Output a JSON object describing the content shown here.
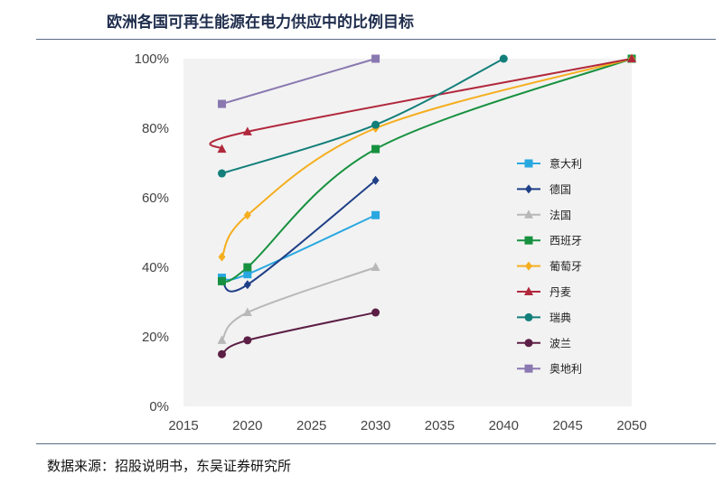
{
  "header": {
    "title": "欧洲各国可再生能源在电力供应中的比例目标"
  },
  "footer": {
    "source": "数据来源：招股说明书，东吴证券研究所"
  },
  "chart_data": {
    "type": "line",
    "title": "欧洲各国可再生能源在电力供应中的比例目标",
    "xlabel": "",
    "ylabel": "",
    "xlim": [
      2015,
      2050
    ],
    "ylim": [
      0,
      100
    ],
    "x_ticks": [
      "2015",
      "2020",
      "2025",
      "2030",
      "2035",
      "2040",
      "2045",
      "2050"
    ],
    "y_ticks": [
      "0%",
      "20%",
      "40%",
      "60%",
      "80%",
      "100%"
    ],
    "grid": false,
    "legend_position": "right",
    "series": [
      {
        "name": "意大利",
        "color": "#29a8e0",
        "marker": "square",
        "points": [
          [
            2018,
            37
          ],
          [
            2020,
            38
          ],
          [
            2030,
            55
          ]
        ]
      },
      {
        "name": "德国",
        "color": "#1f3f87",
        "marker": "diamond",
        "points": [
          [
            2018,
            36
          ],
          [
            2020,
            35
          ],
          [
            2030,
            65
          ]
        ]
      },
      {
        "name": "法国",
        "color": "#b8b8b8",
        "marker": "triangle",
        "points": [
          [
            2018,
            19
          ],
          [
            2020,
            27
          ],
          [
            2030,
            40
          ]
        ]
      },
      {
        "name": "西班牙",
        "color": "#17913f",
        "marker": "square",
        "points": [
          [
            2018,
            36
          ],
          [
            2020,
            40
          ],
          [
            2030,
            74
          ],
          [
            2050,
            100
          ]
        ]
      },
      {
        "name": "葡萄牙",
        "color": "#f5ae1e",
        "marker": "diamond",
        "points": [
          [
            2018,
            43
          ],
          [
            2020,
            55
          ],
          [
            2030,
            80
          ],
          [
            2050,
            100
          ]
        ]
      },
      {
        "name": "丹麦",
        "color": "#b1283c",
        "marker": "triangle",
        "points": [
          [
            2018,
            74
          ],
          [
            2020,
            79
          ],
          [
            2050,
            100
          ]
        ]
      },
      {
        "name": "瑞典",
        "color": "#137f7a",
        "marker": "circle",
        "points": [
          [
            2018,
            67
          ],
          [
            2030,
            81
          ],
          [
            2040,
            100
          ]
        ]
      },
      {
        "name": "波兰",
        "color": "#5c1f45",
        "marker": "circle",
        "points": [
          [
            2018,
            15
          ],
          [
            2020,
            19
          ],
          [
            2030,
            27
          ]
        ]
      },
      {
        "name": "奥地利",
        "color": "#8a78b0",
        "marker": "square",
        "points": [
          [
            2018,
            87
          ],
          [
            2030,
            100
          ]
        ]
      }
    ]
  }
}
